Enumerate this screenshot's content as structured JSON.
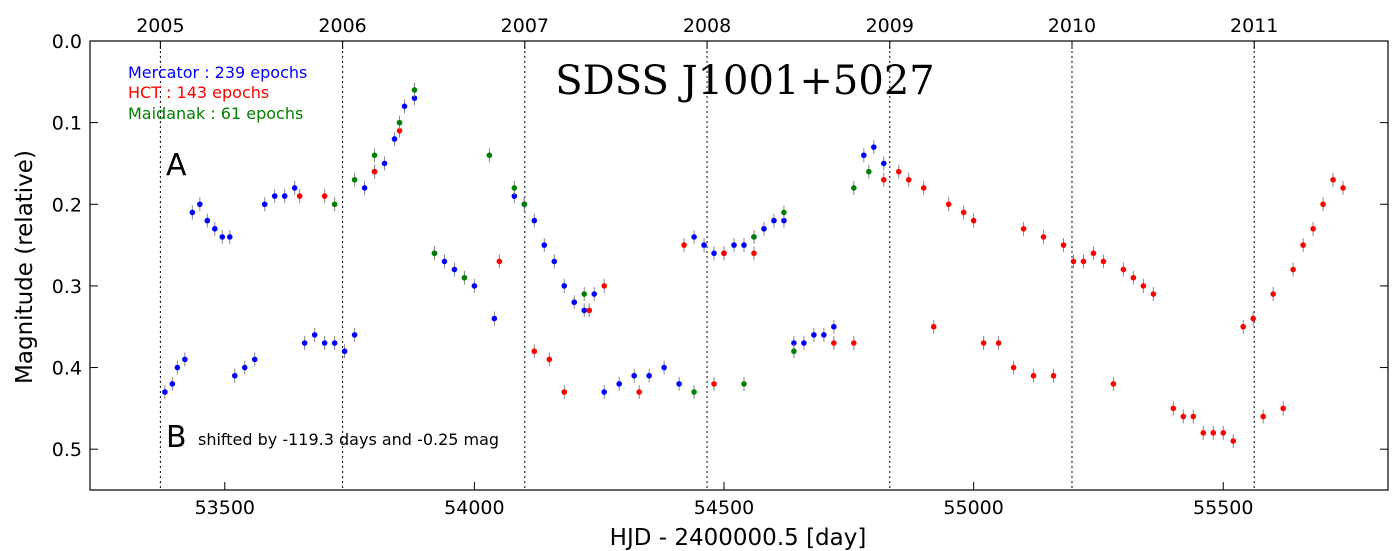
{
  "chart_data": {
    "type": "scatter",
    "title": "SDSS J1001+5027",
    "xlabel": "HJD - 2400000.5 [day]",
    "ylabel": "Magnitude (relative)",
    "xlim": [
      53230,
      55830
    ],
    "ylim": [
      0.55,
      0.0
    ],
    "y_inverted": true,
    "x_ticks": [
      53500,
      54000,
      54500,
      55000,
      55500
    ],
    "y_ticks": [
      0.0,
      0.1,
      0.2,
      0.3,
      0.4,
      0.5
    ],
    "x_tick_labels": [
      "53500",
      "54000",
      "54500",
      "55000",
      "55500"
    ],
    "y_tick_labels": [
      "0.0",
      "0.1",
      "0.2",
      "0.3",
      "0.4",
      "0.5"
    ],
    "top_axis": {
      "labels": [
        "2005",
        "2006",
        "2007",
        "2008",
        "2009",
        "2010",
        "2011"
      ],
      "positions": [
        53371,
        53736,
        54101,
        54466,
        54832,
        55197,
        55562
      ]
    },
    "year_lines": [
      53371,
      53736,
      54101,
      54466,
      54832,
      55197,
      55562
    ],
    "grid": false,
    "legend_position": "top-left",
    "colors": {
      "mercator": "#0000ff",
      "hct": "#ff0000",
      "maidanak": "#008000",
      "errorbar": "#888888"
    },
    "series": [
      {
        "name": "Mercator : 239 epochs",
        "color": "#0000ff",
        "points": [
          [
            53380,
            0.43
          ],
          [
            53395,
            0.42
          ],
          [
            53405,
            0.4
          ],
          [
            53420,
            0.39
          ],
          [
            53435,
            0.21
          ],
          [
            53450,
            0.2
          ],
          [
            53465,
            0.22
          ],
          [
            53480,
            0.23
          ],
          [
            53495,
            0.24
          ],
          [
            53510,
            0.24
          ],
          [
            53520,
            0.41
          ],
          [
            53540,
            0.4
          ],
          [
            53560,
            0.39
          ],
          [
            53580,
            0.2
          ],
          [
            53600,
            0.19
          ],
          [
            53620,
            0.19
          ],
          [
            53640,
            0.18
          ],
          [
            53660,
            0.37
          ],
          [
            53680,
            0.36
          ],
          [
            53700,
            0.37
          ],
          [
            53720,
            0.37
          ],
          [
            53740,
            0.38
          ],
          [
            53760,
            0.36
          ],
          [
            53780,
            0.18
          ],
          [
            53800,
            0.16
          ],
          [
            53820,
            0.15
          ],
          [
            53840,
            0.12
          ],
          [
            53860,
            0.08
          ],
          [
            53880,
            0.07
          ],
          [
            53920,
            0.26
          ],
          [
            53940,
            0.27
          ],
          [
            53960,
            0.28
          ],
          [
            54000,
            0.3
          ],
          [
            54040,
            0.34
          ],
          [
            54080,
            0.19
          ],
          [
            54100,
            0.2
          ],
          [
            54120,
            0.22
          ],
          [
            54140,
            0.25
          ],
          [
            54160,
            0.27
          ],
          [
            54180,
            0.3
          ],
          [
            54200,
            0.32
          ],
          [
            54220,
            0.33
          ],
          [
            54240,
            0.31
          ],
          [
            54260,
            0.43
          ],
          [
            54290,
            0.42
          ],
          [
            54320,
            0.41
          ],
          [
            54350,
            0.41
          ],
          [
            54380,
            0.4
          ],
          [
            54410,
            0.42
          ],
          [
            54440,
            0.24
          ],
          [
            54460,
            0.25
          ],
          [
            54480,
            0.26
          ],
          [
            54500,
            0.26
          ],
          [
            54520,
            0.25
          ],
          [
            54540,
            0.25
          ],
          [
            54560,
            0.24
          ],
          [
            54580,
            0.23
          ],
          [
            54600,
            0.22
          ],
          [
            54620,
            0.22
          ],
          [
            54640,
            0.37
          ],
          [
            54660,
            0.37
          ],
          [
            54680,
            0.36
          ],
          [
            54700,
            0.36
          ],
          [
            54720,
            0.35
          ],
          [
            54780,
            0.14
          ],
          [
            54800,
            0.13
          ],
          [
            54820,
            0.15
          ]
        ]
      },
      {
        "name": "HCT : 143 epochs",
        "color": "#ff0000",
        "points": [
          [
            53650,
            0.19
          ],
          [
            53700,
            0.19
          ],
          [
            53800,
            0.16
          ],
          [
            53850,
            0.11
          ],
          [
            54050,
            0.27
          ],
          [
            54120,
            0.38
          ],
          [
            54150,
            0.39
          ],
          [
            54180,
            0.43
          ],
          [
            54230,
            0.33
          ],
          [
            54260,
            0.3
          ],
          [
            54330,
            0.43
          ],
          [
            54420,
            0.25
          ],
          [
            54480,
            0.42
          ],
          [
            54500,
            0.26
          ],
          [
            54560,
            0.26
          ],
          [
            54720,
            0.37
          ],
          [
            54760,
            0.37
          ],
          [
            54820,
            0.17
          ],
          [
            54850,
            0.16
          ],
          [
            54870,
            0.17
          ],
          [
            54900,
            0.18
          ],
          [
            54920,
            0.35
          ],
          [
            54950,
            0.2
          ],
          [
            54980,
            0.21
          ],
          [
            55000,
            0.22
          ],
          [
            55020,
            0.37
          ],
          [
            55050,
            0.37
          ],
          [
            55080,
            0.4
          ],
          [
            55100,
            0.23
          ],
          [
            55120,
            0.41
          ],
          [
            55140,
            0.24
          ],
          [
            55160,
            0.41
          ],
          [
            55180,
            0.25
          ],
          [
            55200,
            0.27
          ],
          [
            55220,
            0.27
          ],
          [
            55240,
            0.26
          ],
          [
            55260,
            0.27
          ],
          [
            55280,
            0.42
          ],
          [
            55300,
            0.28
          ],
          [
            55320,
            0.29
          ],
          [
            55340,
            0.3
          ],
          [
            55360,
            0.31
          ],
          [
            55400,
            0.45
          ],
          [
            55420,
            0.46
          ],
          [
            55440,
            0.46
          ],
          [
            55460,
            0.48
          ],
          [
            55480,
            0.48
          ],
          [
            55500,
            0.48
          ],
          [
            55520,
            0.49
          ],
          [
            55540,
            0.35
          ],
          [
            55560,
            0.34
          ],
          [
            55580,
            0.46
          ],
          [
            55600,
            0.31
          ],
          [
            55620,
            0.45
          ],
          [
            55640,
            0.28
          ],
          [
            55660,
            0.25
          ],
          [
            55680,
            0.23
          ],
          [
            55700,
            0.2
          ],
          [
            55720,
            0.17
          ],
          [
            55740,
            0.18
          ]
        ]
      },
      {
        "name": "Maidanak : 61 epochs",
        "color": "#008000",
        "points": [
          [
            53720,
            0.2
          ],
          [
            53760,
            0.17
          ],
          [
            53800,
            0.14
          ],
          [
            53850,
            0.1
          ],
          [
            53880,
            0.06
          ],
          [
            53920,
            0.26
          ],
          [
            53980,
            0.29
          ],
          [
            54030,
            0.14
          ],
          [
            54080,
            0.18
          ],
          [
            54100,
            0.2
          ],
          [
            54220,
            0.31
          ],
          [
            54440,
            0.43
          ],
          [
            54540,
            0.42
          ],
          [
            54560,
            0.24
          ],
          [
            54620,
            0.21
          ],
          [
            54640,
            0.38
          ],
          [
            54760,
            0.18
          ],
          [
            54790,
            0.16
          ]
        ]
      }
    ],
    "annotations": [
      {
        "text": "A",
        "x": 53340,
        "y": 0.155
      },
      {
        "text": "B",
        "x": 53340,
        "y": 0.49
      },
      {
        "text": "shifted by -119.3 days and -0.25 mag",
        "x": 53375,
        "y": 0.49
      }
    ]
  }
}
